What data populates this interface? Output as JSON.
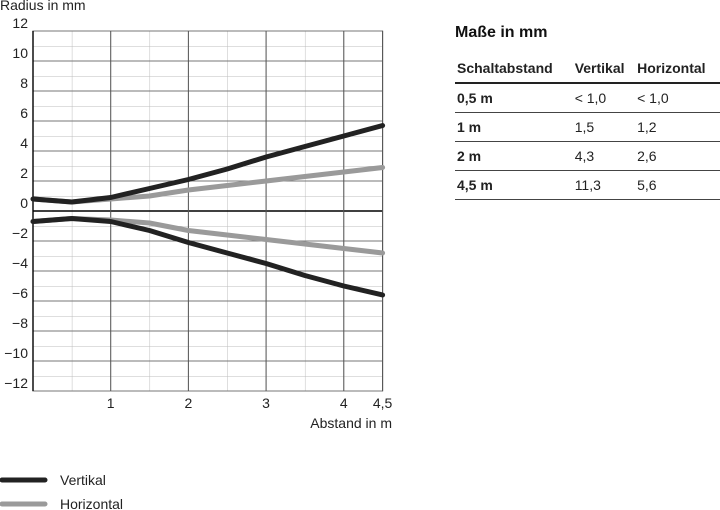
{
  "chart_data": {
    "type": "line",
    "ylabel": "Radius in mm",
    "xlabel": "Abstand in m",
    "x": [
      0,
      0.5,
      1,
      1.5,
      2,
      2.5,
      3,
      3.5,
      4,
      4.5
    ],
    "series": [
      {
        "name": "Vertikal",
        "color": "#222222",
        "values": [
          0.8,
          0.6,
          0.9,
          1.5,
          2.1,
          2.8,
          3.6,
          4.3,
          5.0,
          5.7
        ],
        "lower": [
          -0.7,
          -0.5,
          -0.7,
          -1.3,
          -2.1,
          -2.8,
          -3.5,
          -4.3,
          -5.0,
          -5.6
        ]
      },
      {
        "name": "Horizontal",
        "color": "#9a9a9a",
        "values": [
          0.8,
          0.6,
          0.8,
          1.0,
          1.4,
          1.7,
          2.0,
          2.3,
          2.6,
          2.9
        ],
        "lower": [
          -0.7,
          -0.5,
          -0.6,
          -0.8,
          -1.3,
          -1.6,
          -1.9,
          -2.2,
          -2.5,
          -2.8
        ]
      }
    ],
    "xlim": [
      0,
      4.5
    ],
    "xticks": [
      1,
      2,
      3,
      4,
      {
        "value": 4.5,
        "label": "4,5"
      }
    ],
    "ylim": [
      -12,
      12
    ],
    "yticks": [
      {
        "value": -12,
        "label": "−12"
      },
      {
        "value": -10,
        "label": "−10"
      },
      {
        "value": -8,
        "label": "−8"
      },
      {
        "value": -6,
        "label": "−6"
      },
      {
        "value": -4,
        "label": "−4"
      },
      {
        "value": -2,
        "label": "−2"
      },
      0,
      2,
      4,
      6,
      8,
      10,
      12
    ],
    "grid": true
  },
  "table": {
    "title": "Maße in mm",
    "header": [
      "Schaltabstand",
      "Vertikal",
      "Horizontal"
    ],
    "rows": [
      [
        "0,5 m",
        "< 1,0",
        "< 1,0"
      ],
      [
        "1 m",
        "1,5",
        "1,2"
      ],
      [
        "2 m",
        "4,3",
        "2,6"
      ],
      [
        "4,5 m",
        "11,3",
        "5,6"
      ]
    ]
  }
}
